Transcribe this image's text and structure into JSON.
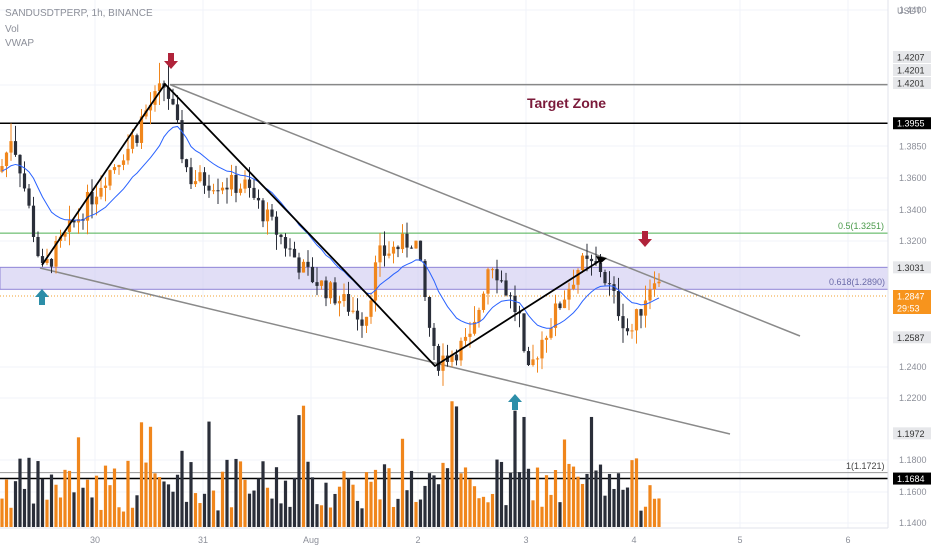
{
  "header": {
    "symbol_line": "SANDUSDTPERP, 1h, BINANCE",
    "indicator_vol": "Vol",
    "indicator_vwap": "VWAP",
    "currency": "USDT"
  },
  "annotations": {
    "target_zone": "Target Zone",
    "fib_05": "0.5(1.3251)",
    "fib_0618": "0.618(1.2890)",
    "fib_1": "1(1.1721)"
  },
  "colors": {
    "up": "#f0861c",
    "down": "#2a2e39",
    "vwap": "#2962ff",
    "zone": "#c9c2ee",
    "arrow_down": "#b0233a",
    "arrow_up": "#2c8ea8",
    "fib": "#4caf50"
  },
  "chart_data": {
    "type": "candlestick",
    "x_ticks": [
      "30",
      "31",
      "Aug",
      "2",
      "3",
      "4",
      "5",
      "6"
    ],
    "y_ticks": [
      "1.4400",
      "1.4200",
      "1.3850",
      "1.3600",
      "1.3400",
      "1.3200",
      "1.2847",
      "1.2400",
      "1.2200",
      "1.1800",
      "1.1600",
      "1.1400"
    ],
    "price_tags": [
      {
        "label": "1.4207",
        "value": 1.4207,
        "style": "grey"
      },
      {
        "label": "1.4201",
        "value": 1.4201,
        "style": "grey"
      },
      {
        "label": "1.4201",
        "value": 1.4201,
        "style": "grey"
      },
      {
        "label": "1.3955",
        "value": 1.3955,
        "style": "black"
      },
      {
        "label": "1.3031",
        "value": 1.3031,
        "style": "grey"
      },
      {
        "label": "1.2847",
        "value": 1.2847,
        "style": "orange"
      },
      {
        "label": "29:53",
        "value": 1.2847,
        "style": "orange-sub"
      },
      {
        "label": "1.2587",
        "value": 1.2587,
        "style": "grey"
      },
      {
        "label": "1.1972",
        "value": 1.1972,
        "style": "grey"
      },
      {
        "label": "1.1684",
        "value": 1.1684,
        "style": "black"
      }
    ],
    "horizontal_levels": [
      1.4201,
      1.3955,
      1.3251,
      1.2847,
      1.1721,
      1.1684
    ],
    "zone": [
      1.289,
      1.3031
    ],
    "current_price": 1.2847,
    "countdown": "29:53"
  }
}
